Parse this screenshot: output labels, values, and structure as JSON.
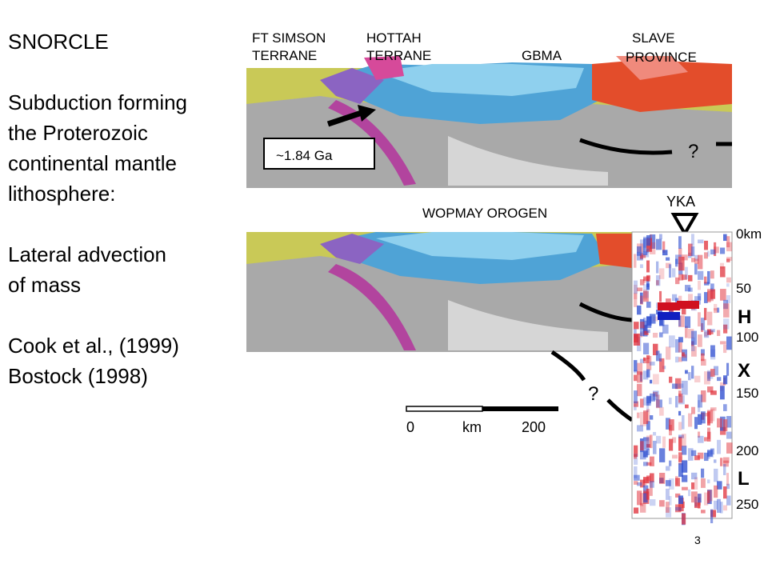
{
  "slide": {
    "text_lines": [
      "SNORCLE",
      "Subduction forming",
      "the Proterozoic",
      "continental mantle",
      "lithosphere:",
      "Lateral advection",
      "of mass",
      "Cook et al., (1999)",
      "Bostock (1998)"
    ],
    "figure": {
      "top_labels": {
        "ft_simson": [
          "FT SIMSON",
          "TERRANE"
        ],
        "hottah": [
          "HOTTAH",
          "TERRANE"
        ],
        "gbma": "GBMA",
        "slave": [
          "SLAVE",
          "PROVINCE"
        ]
      },
      "age_box": "~1.84 Ga",
      "question_top": "?",
      "orogen": "WOPMAY OROGEN",
      "station": "YKA",
      "depth_labels": [
        "0km",
        "50",
        "100",
        "150",
        "200",
        "250"
      ],
      "layers": [
        "H",
        "X",
        "L"
      ],
      "question_bottom": "?",
      "scale": [
        "0",
        "km",
        "200"
      ]
    },
    "page_number": "3"
  }
}
